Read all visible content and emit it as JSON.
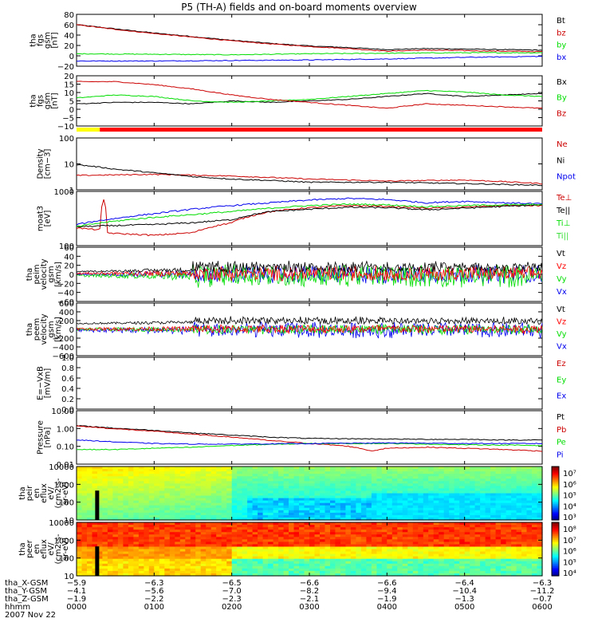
{
  "title": "P5 (TH-A) fields and on-board moments overview",
  "colors": {
    "black": "#000000",
    "red": "#cc0000",
    "green": "#00dd00",
    "blue": "#0000ee",
    "brightred": "#ff0000",
    "darkred": "#a00000",
    "lightgreen": "#33dd33",
    "yellow": "#ffff00"
  },
  "chart_data": [
    {
      "id": "p1",
      "type": "line",
      "ylabel": [
        "tha",
        "fgs",
        "gsm",
        "[nT]"
      ],
      "yticks": [
        "80",
        "60",
        "40",
        "20",
        "0",
        "−20"
      ],
      "ylim": [
        -20,
        80
      ],
      "legend": [
        {
          "label": "Bt",
          "color": "#000000"
        },
        {
          "label": "bz",
          "color": "#cc0000"
        },
        {
          "label": "by",
          "color": "#00dd00"
        },
        {
          "label": "bx",
          "color": "#0000ee"
        }
      ],
      "series": [
        {
          "name": "Bt",
          "color": "#000000",
          "x": [
            0,
            0.5,
            1,
            1.5,
            2,
            2.5,
            3,
            3.5,
            4,
            4.5,
            5,
            5.5,
            6
          ],
          "y": [
            60,
            52,
            44,
            37,
            30,
            24,
            19,
            16,
            12,
            14,
            13,
            12,
            11
          ]
        },
        {
          "name": "bz",
          "color": "#cc0000",
          "x": [
            0,
            0.5,
            1,
            1.5,
            2,
            2.5,
            3,
            3.5,
            4,
            4.5,
            5,
            5.5,
            6
          ],
          "y": [
            60,
            51,
            43,
            36,
            29,
            23,
            18,
            14,
            9,
            11,
            10,
            9,
            8
          ]
        },
        {
          "name": "by",
          "color": "#00dd00",
          "x": [
            0,
            1,
            2,
            3,
            4,
            5,
            6
          ],
          "y": [
            4,
            3,
            2,
            4,
            5,
            6,
            6
          ]
        },
        {
          "name": "bx",
          "color": "#0000ee",
          "x": [
            0,
            1,
            2,
            3,
            4,
            5,
            6
          ],
          "y": [
            -10,
            -10,
            -9,
            -8,
            -6,
            -3,
            -1
          ]
        }
      ]
    },
    {
      "id": "p2",
      "type": "line",
      "ylabel": [
        "tha",
        "fgs",
        "gsm",
        "[nT]"
      ],
      "yticks": [
        "20",
        "15",
        "10",
        "5",
        "0",
        "−5",
        "−10"
      ],
      "ylim": [
        -14,
        20
      ],
      "legend": [
        {
          "label": "Bx",
          "color": "#000000"
        },
        {
          "label": "By",
          "color": "#00dd00"
        },
        {
          "label": "Bz",
          "color": "#cc0000"
        }
      ],
      "series": [
        {
          "name": "Bx",
          "color": "#000000",
          "x": [
            0,
            0.5,
            1,
            1.5,
            2,
            2.5,
            3,
            3.5,
            4,
            4.5,
            5,
            5.5,
            6
          ],
          "y": [
            1,
            2,
            2,
            1,
            3,
            2,
            3,
            4,
            6,
            8,
            6,
            7,
            8
          ]
        },
        {
          "name": "By",
          "color": "#00dd00",
          "x": [
            0,
            0.5,
            1,
            1.5,
            2,
            2.5,
            3,
            3.5,
            4,
            4.5,
            5,
            5.5,
            6
          ],
          "y": [
            5,
            7,
            6,
            3,
            2,
            3,
            4,
            6,
            8,
            10,
            9,
            7,
            6
          ]
        },
        {
          "name": "Bz",
          "color": "#cc0000",
          "x": [
            0,
            0.5,
            1,
            1.5,
            2,
            2.5,
            3,
            3.5,
            4,
            4.5,
            5,
            5.5,
            6
          ],
          "y": [
            16,
            16,
            14,
            11,
            7,
            4,
            2,
            0,
            -2,
            1,
            0,
            -1,
            -2
          ]
        }
      ]
    },
    {
      "id": "p3",
      "type": "line",
      "log": true,
      "ylabel": [
        "Density",
        "[cm−3]"
      ],
      "yticks": [
        "100",
        "10",
        "1"
      ],
      "ylim": [
        0.3,
        100
      ],
      "legend": [
        {
          "label": "Ne",
          "color": "#cc0000"
        },
        {
          "label": "Ni",
          "color": "#000000"
        },
        {
          "label": "Npot",
          "color": "#0000ee"
        }
      ],
      "series": [
        {
          "name": "Ne",
          "color": "#cc0000",
          "x": [
            0,
            1,
            2,
            3,
            4,
            5,
            6
          ],
          "y": [
            1.5,
            1.7,
            1.4,
            1.0,
            0.8,
            0.9,
            0.6
          ]
        },
        {
          "name": "Ni",
          "color": "#000000",
          "x": [
            0,
            0.5,
            1,
            1.5,
            2,
            3,
            4,
            5,
            6
          ],
          "y": [
            5,
            3,
            2,
            1.3,
            1.0,
            0.7,
            0.7,
            0.6,
            0.5
          ]
        }
      ]
    },
    {
      "id": "p4",
      "type": "line",
      "log": true,
      "ylabel": [
        "moat3",
        "[eV]"
      ],
      "yticks": [
        "1000",
        "100"
      ],
      "ylim": [
        100,
        10000
      ],
      "legend": [
        {
          "label": "Te⊥",
          "color": "#cc0000"
        },
        {
          "label": "Te||",
          "color": "#000000"
        },
        {
          "label": "Ti⊥",
          "color": "#00dd00"
        },
        {
          "label": "Ti||",
          "color": "#33dd33"
        }
      ],
      "series": [
        {
          "name": "Te⊥",
          "color": "#cc0000",
          "x": [
            0,
            0.2,
            0.3,
            0.35,
            0.4,
            0.5,
            1,
            1.5,
            2,
            2.5,
            3,
            3.5,
            4,
            4.5,
            5,
            5.5,
            6
          ],
          "y": [
            450,
            400,
            400,
            4800,
            300,
            280,
            240,
            300,
            700,
            1800,
            2500,
            3000,
            2800,
            2400,
            2600,
            3000,
            3000
          ]
        },
        {
          "name": "Te||",
          "color": "#000000",
          "x": [
            0,
            0.5,
            1,
            1.5,
            2,
            2.5,
            3,
            3.5,
            4,
            4.5,
            5,
            5.5,
            6
          ],
          "y": [
            500,
            550,
            600,
            700,
            900,
            1800,
            2200,
            2600,
            2500,
            2100,
            2400,
            2800,
            3200
          ]
        },
        {
          "name": "Ti⊥",
          "color": "#0000ee",
          "x": [
            0,
            0.5,
            1,
            1.5,
            2,
            2.5,
            3,
            3.5,
            4,
            4.5,
            5,
            5.5,
            6
          ],
          "y": [
            600,
            1000,
            1500,
            2200,
            3000,
            3800,
            4800,
            5500,
            5000,
            3800,
            4300,
            3800,
            3500
          ]
        },
        {
          "name": "Ti||",
          "color": "#00dd00",
          "x": [
            0,
            0.5,
            1,
            1.5,
            2,
            2.5,
            3,
            3.5,
            4,
            4.5,
            5,
            5.5,
            6
          ],
          "y": [
            500,
            800,
            1100,
            1400,
            1800,
            2400,
            3000,
            3400,
            3200,
            2700,
            3000,
            3200,
            3300
          ]
        }
      ]
    },
    {
      "id": "p5",
      "type": "noisy",
      "ylabel": [
        "tha",
        "peim",
        "velocity",
        "gsm",
        "[km/s]"
      ],
      "yticks": [
        "60",
        "40",
        "20",
        "0",
        "−20",
        "−40",
        "−60"
      ],
      "ylim": [
        -60,
        60
      ],
      "legend": [
        {
          "label": "Vt",
          "color": "#000000"
        },
        {
          "label": "Vz",
          "color": "#ff0000"
        },
        {
          "label": "Vy",
          "color": "#00dd00"
        },
        {
          "label": "Vx",
          "color": "#0000ee"
        }
      ],
      "series": [
        {
          "name": "Vx",
          "color": "#0000ee",
          "base": 0,
          "amp": [
            2,
            22
          ]
        },
        {
          "name": "Vy",
          "color": "#00dd00",
          "base": -3,
          "amp": [
            2,
            28
          ]
        },
        {
          "name": "Vz",
          "color": "#ff0000",
          "base": 2,
          "amp": [
            2,
            18
          ]
        },
        {
          "name": "Vt",
          "color": "#000000",
          "base": 5,
          "amp": [
            2,
            26
          ],
          "positive": true
        }
      ]
    },
    {
      "id": "p6",
      "type": "noisy",
      "ylabel": [
        "tha",
        "peem",
        "velocity",
        "gsm",
        "[km/s]"
      ],
      "yticks": [
        "600",
        "400",
        "200",
        "0",
        "−200",
        "−400",
        "−600"
      ],
      "ylim": [
        -600,
        600
      ],
      "legend": [
        {
          "label": "Vt",
          "color": "#000000"
        },
        {
          "label": "Vz",
          "color": "#ff0000"
        },
        {
          "label": "Vy",
          "color": "#00dd00"
        },
        {
          "label": "Vx",
          "color": "#0000ee"
        }
      ],
      "series": [
        {
          "name": "Vx",
          "color": "#0000ee",
          "base": -20,
          "amp": [
            40,
            200
          ]
        },
        {
          "name": "Vy",
          "color": "#00dd00",
          "base": 0,
          "amp": [
            30,
            120
          ]
        },
        {
          "name": "Vz",
          "color": "#ff0000",
          "base": 10,
          "amp": [
            30,
            110
          ]
        },
        {
          "name": "Vt",
          "color": "#000000",
          "base": 120,
          "amp": [
            30,
            180
          ],
          "positive": true
        }
      ]
    },
    {
      "id": "p7",
      "type": "line",
      "ylabel": [
        "E=−VxB",
        "[mV/m]"
      ],
      "yticks": [
        "1.0",
        "0.8",
        "0.6",
        "0.4",
        "0.2",
        "0.0"
      ],
      "ylim": [
        0,
        1
      ],
      "legend": [
        {
          "label": "Ez",
          "color": "#cc0000"
        },
        {
          "label": "Ey",
          "color": "#00dd00"
        },
        {
          "label": "Ex",
          "color": "#0000ee"
        }
      ],
      "series": []
    },
    {
      "id": "p8",
      "type": "line",
      "log": true,
      "ylabel": [
        "Pressure",
        "[nPa]"
      ],
      "yticks": [
        "10.00",
        "1.00",
        "0.10",
        "0.01"
      ],
      "ylim": [
        0.006,
        14
      ],
      "legend": [
        {
          "label": "Pt",
          "color": "#000000"
        },
        {
          "label": "Pb",
          "color": "#cc0000"
        },
        {
          "label": "Pe",
          "color": "#00dd00"
        },
        {
          "label": "Pi",
          "color": "#0000ee"
        }
      ],
      "series": [
        {
          "name": "Pt",
          "color": "#000000",
          "x": [
            0,
            0.5,
            1,
            1.5,
            2,
            2.5,
            3,
            3.5,
            4,
            4.5,
            5,
            5.5,
            6
          ],
          "y": [
            1.6,
            1.1,
            0.8,
            0.55,
            0.4,
            0.3,
            0.25,
            0.24,
            0.23,
            0.22,
            0.22,
            0.2,
            0.2
          ]
        },
        {
          "name": "Pb",
          "color": "#cc0000",
          "x": [
            0,
            0.5,
            1,
            1.5,
            2,
            2.5,
            3,
            3.5,
            3.8,
            4,
            4.5,
            5,
            5.5,
            6
          ],
          "y": [
            1.5,
            1.0,
            0.7,
            0.45,
            0.3,
            0.18,
            0.12,
            0.08,
            0.04,
            0.06,
            0.07,
            0.06,
            0.05,
            0.04
          ]
        },
        {
          "name": "Pe",
          "color": "#00dd00",
          "x": [
            0,
            0.5,
            1,
            1.5,
            2,
            3,
            4,
            5,
            6
          ],
          "y": [
            0.05,
            0.05,
            0.06,
            0.07,
            0.09,
            0.12,
            0.12,
            0.1,
            0.09
          ]
        },
        {
          "name": "Pi",
          "color": "#0000ee",
          "x": [
            0,
            0.5,
            1,
            1.5,
            2,
            3,
            4,
            5,
            6
          ],
          "y": [
            0.2,
            0.15,
            0.12,
            0.11,
            0.11,
            0.12,
            0.13,
            0.12,
            0.12
          ]
        }
      ]
    },
    {
      "id": "p9",
      "type": "heatmap",
      "ylabel": [
        "tha",
        "peir",
        "en",
        "eflux",
        "eV/",
        "(cm2-s-",
        "sr-eV)"
      ],
      "yticks": [
        "10000",
        "1000",
        "100",
        "10"
      ],
      "colorbar_ticks": [
        "10⁷",
        "10⁶",
        "10⁵",
        "10⁴",
        "10³"
      ]
    },
    {
      "id": "p10",
      "type": "heatmap",
      "ylabel": [
        "tha",
        "peer",
        "en",
        "eflux",
        "eV/",
        "(cm2-s-",
        "sr-eV)"
      ],
      "yticks": [
        "10000",
        "1000",
        "100",
        "10"
      ],
      "colorbar_ticks": [
        "10⁸",
        "10⁷",
        "10⁶",
        "10⁵",
        "10⁴"
      ]
    }
  ],
  "xaxis": {
    "row_labels": [
      "tha_X-GSM",
      "tha_Y-GSM",
      "tha_Z-GSM",
      "hhmm",
      "2007 Nov 22"
    ],
    "columns": [
      [
        "−5.9",
        "−4.1",
        "−1.9",
        "0000"
      ],
      [
        "−6.3",
        "−5.6",
        "−2.2",
        "0100"
      ],
      [
        "−6.5",
        "−7.0",
        "−2.3",
        "0200"
      ],
      [
        "−6.6",
        "−8.2",
        "−2.1",
        "0300"
      ],
      [
        "−6.6",
        "−9.4",
        "−1.9",
        "0400"
      ],
      [
        "−6.4",
        "−10.4",
        "−1.3",
        "0500"
      ],
      [
        "−6.3",
        "−11.2",
        "−0.7",
        "0600"
      ]
    ]
  }
}
